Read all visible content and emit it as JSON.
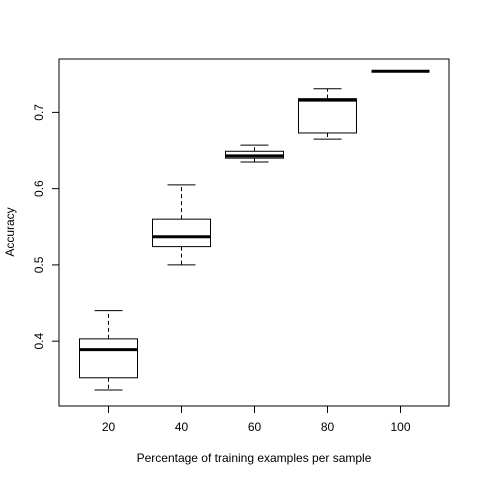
{
  "chart_data": {
    "type": "boxplot",
    "title": "",
    "xlabel": "Percentage of training examples per sample",
    "ylabel": "Accuracy",
    "categories": [
      "20",
      "40",
      "60",
      "80",
      "100"
    ],
    "ylim": [
      0.315,
      0.77
    ],
    "yticks": [
      "0.4",
      "0.5",
      "0.6",
      "0.7"
    ],
    "grid": false,
    "boxes": [
      {
        "category": "20",
        "whisker_low": 0.336,
        "q1": 0.352,
        "median": 0.389,
        "q3": 0.403,
        "whisker_high": 0.44
      },
      {
        "category": "40",
        "whisker_low": 0.5,
        "q1": 0.524,
        "median": 0.537,
        "q3": 0.56,
        "whisker_high": 0.605
      },
      {
        "category": "60",
        "whisker_low": 0.635,
        "q1": 0.64,
        "median": 0.643,
        "q3": 0.649,
        "whisker_high": 0.657
      },
      {
        "category": "80",
        "whisker_low": 0.665,
        "q1": 0.673,
        "median": 0.716,
        "q3": 0.718,
        "whisker_high": 0.731
      },
      {
        "category": "100",
        "whisker_low": 0.754,
        "q1": 0.754,
        "median": 0.754,
        "q3": 0.754,
        "whisker_high": 0.754
      }
    ]
  }
}
